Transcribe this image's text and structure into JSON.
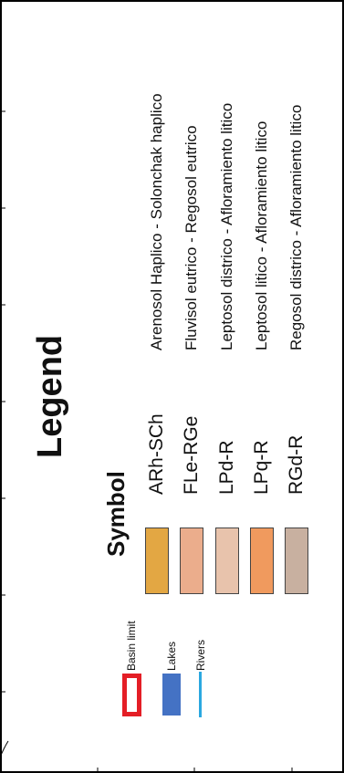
{
  "legend": {
    "title": "Legend",
    "symbol_heading": "Symbol",
    "items": [
      {
        "code": "ARh-SCh",
        "label": "Arenosol Haplico - Solonchak haplico",
        "color": "#E3A743"
      },
      {
        "code": "FLe-RGe",
        "label": "Fluvisol eutrico - Regosol eutrico",
        "color": "#EBAD8C"
      },
      {
        "code": "LPd-R",
        "label": "Leptosol districo - Afloramiento litico",
        "color": "#E8C3AC"
      },
      {
        "code": "LPq-R",
        "label": "Leptosol litico - Afloramiento litico",
        "color": "#F09A5E"
      },
      {
        "code": "RGd-R",
        "label": "Regosol districo - Afloramiento litico",
        "color": "#C8B0A0"
      }
    ],
    "boundary_items": [
      {
        "label": "Basin limit",
        "color": "#E41E26",
        "icon": "basin-limit-icon"
      },
      {
        "label": "Lakes",
        "color": "#4472C4",
        "icon": "lake-icon"
      },
      {
        "label": "Rivers",
        "color": "#2BA8E0",
        "icon": "river-icon"
      }
    ]
  }
}
